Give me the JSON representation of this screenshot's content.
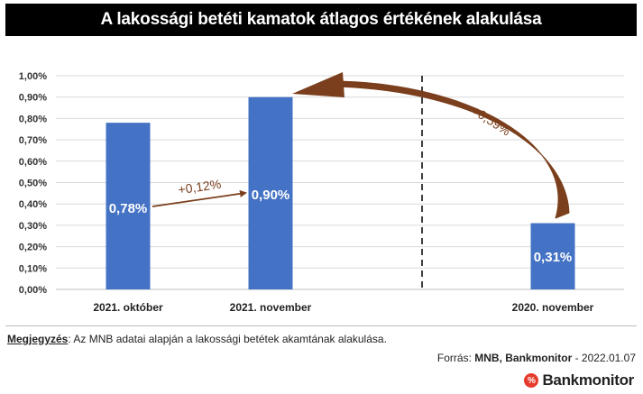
{
  "title": "A lakossági betéti kamatok átlagos értékének alakulása",
  "chart_data": {
    "type": "bar",
    "categories": [
      "2021. október",
      "2021. november",
      "2020. november"
    ],
    "values": [
      0.78,
      0.9,
      0.31
    ],
    "data_labels": [
      "0,78%",
      "0,90%",
      "0,31%"
    ],
    "ylim": [
      0,
      1.0
    ],
    "yticks": [
      "0,00%",
      "0,10%",
      "0,20%",
      "0,30%",
      "0,40%",
      "0,50%",
      "0,60%",
      "0,70%",
      "0,80%",
      "0,90%",
      "1,00%"
    ],
    "grid": true,
    "bar_color": "#4472c4",
    "annotations": [
      {
        "text": "+0,12%",
        "from": "2021. október",
        "to": "2021. november"
      },
      {
        "text": "+0,59%",
        "from": "2020. november",
        "to": "2021. november"
      }
    ],
    "arrow_color": "#7b3f1d",
    "separator": "dashed vertical line between 2021. november and 2020. november"
  },
  "footer": {
    "note_label": "Megjegyzés",
    "note_text": ": Az MNB adatai alapján a lakossági betétek akamtának alakulása.",
    "source_prefix": "Forrás: ",
    "source_names": "MNB, Bankmonitor",
    "source_date": " - 2022.01.07"
  },
  "brand": {
    "icon_text": "%",
    "name": "Bankmonitor",
    "color": "#e53b2c"
  }
}
